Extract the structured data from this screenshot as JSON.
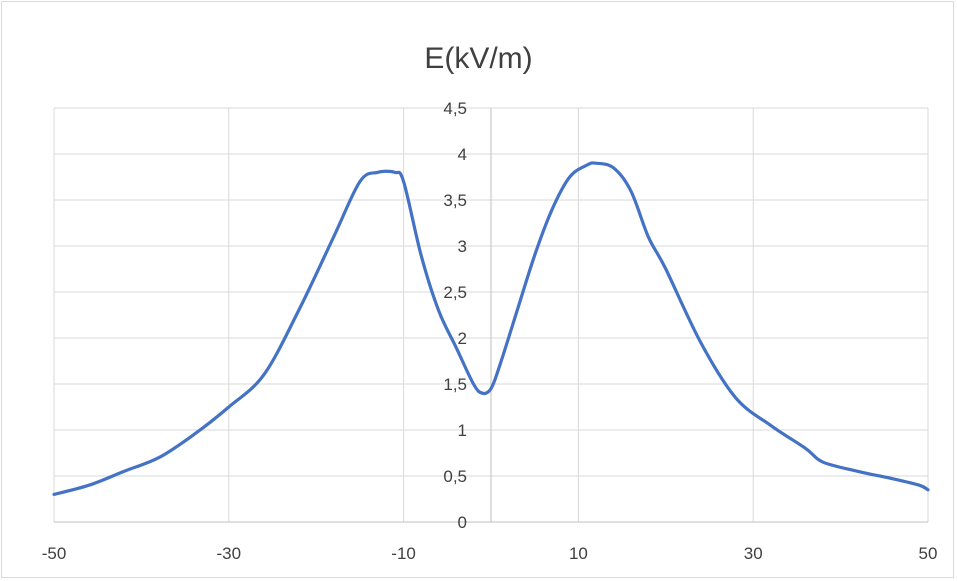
{
  "chart_data": {
    "type": "line",
    "title": "E(kV/m)",
    "xlabel": "",
    "ylabel": "",
    "xlim": [
      -50,
      50
    ],
    "ylim": [
      0,
      4.5
    ],
    "x_ticks": [
      "-50",
      "-30",
      "-10",
      "10",
      "30",
      "50"
    ],
    "y_ticks": [
      "0",
      "0,5",
      "1",
      "1,5",
      "2",
      "2,5",
      "3",
      "3,5",
      "4",
      "4,5"
    ],
    "grid": true,
    "legend": "none",
    "line_color": "#4472c4",
    "series": [
      {
        "x": [
          -50,
          -46,
          -42,
          -38,
          -34,
          -30,
          -26,
          -22,
          -18,
          -15,
          -13,
          -11,
          -10,
          -8,
          -6,
          -4,
          -2,
          -1,
          0,
          1,
          3,
          5,
          7,
          9,
          11,
          12,
          14,
          16,
          18,
          20,
          24,
          28,
          32,
          36,
          38,
          42,
          46,
          49,
          50
        ],
        "y": [
          0.3,
          0.4,
          0.55,
          0.7,
          0.95,
          1.25,
          1.6,
          2.3,
          3.1,
          3.7,
          3.8,
          3.8,
          3.7,
          2.9,
          2.3,
          1.9,
          1.5,
          1.4,
          1.45,
          1.7,
          2.3,
          2.9,
          3.4,
          3.75,
          3.88,
          3.9,
          3.85,
          3.6,
          3.1,
          2.75,
          1.95,
          1.35,
          1.05,
          0.8,
          0.65,
          0.55,
          0.47,
          0.4,
          0.35
        ]
      }
    ]
  }
}
